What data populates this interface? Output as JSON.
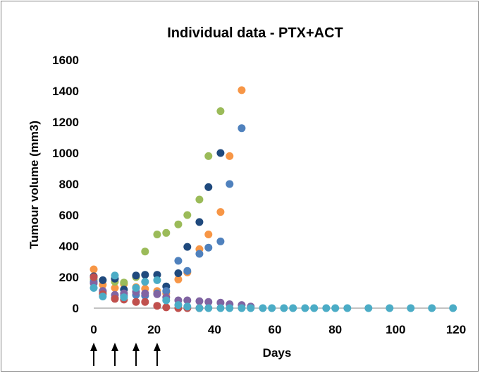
{
  "chart_data": {
    "type": "scatter",
    "title": "Individual data - PTX+ACT",
    "xlabel": "Days",
    "ylabel": "Tumour volume (mm3)",
    "xlim": [
      0,
      120
    ],
    "ylim": [
      0,
      1600
    ],
    "x_ticks": [
      0,
      20,
      40,
      60,
      80,
      100,
      120
    ],
    "y_ticks": [
      0,
      200,
      400,
      600,
      800,
      1000,
      1200,
      1400,
      1600
    ],
    "grid": false,
    "legend": "none",
    "treatment_days": [
      0,
      7,
      14,
      21
    ],
    "series": [
      {
        "color": "#f79646",
        "points": [
          [
            0,
            250
          ],
          [
            3,
            150
          ],
          [
            7,
            130
          ],
          [
            10,
            155
          ],
          [
            14,
            135
          ],
          [
            17,
            125
          ],
          [
            21,
            110
          ],
          [
            24,
            95
          ],
          [
            28,
            185
          ],
          [
            31,
            230
          ],
          [
            35,
            380
          ],
          [
            38,
            475
          ],
          [
            42,
            620
          ],
          [
            45,
            980
          ],
          [
            49,
            1405
          ]
        ]
      },
      {
        "color": "#9bbb59",
        "points": [
          [
            0,
            185
          ],
          [
            3,
            100
          ],
          [
            7,
            170
          ],
          [
            10,
            165
          ],
          [
            14,
            200
          ],
          [
            17,
            365
          ],
          [
            21,
            475
          ],
          [
            24,
            485
          ],
          [
            28,
            540
          ],
          [
            31,
            600
          ],
          [
            35,
            700
          ],
          [
            38,
            980
          ],
          [
            42,
            1270
          ]
        ]
      },
      {
        "color": "#1f497d",
        "points": [
          [
            0,
            205
          ],
          [
            3,
            180
          ],
          [
            7,
            190
          ],
          [
            10,
            120
          ],
          [
            14,
            210
          ],
          [
            17,
            215
          ],
          [
            21,
            215
          ],
          [
            24,
            140
          ],
          [
            28,
            225
          ],
          [
            31,
            395
          ],
          [
            35,
            555
          ],
          [
            38,
            780
          ],
          [
            42,
            1000
          ]
        ]
      },
      {
        "color": "#4f81bd",
        "points": [
          [
            0,
            170
          ],
          [
            3,
            110
          ],
          [
            7,
            65
          ],
          [
            10,
            80
          ],
          [
            14,
            85
          ],
          [
            17,
            80
          ],
          [
            21,
            95
          ],
          [
            24,
            110
          ],
          [
            28,
            305
          ],
          [
            31,
            240
          ],
          [
            35,
            350
          ],
          [
            38,
            390
          ],
          [
            42,
            430
          ],
          [
            45,
            800
          ],
          [
            49,
            1160
          ]
        ]
      },
      {
        "color": "#8064a2",
        "points": [
          [
            0,
            160
          ],
          [
            3,
            110
          ],
          [
            7,
            85
          ],
          [
            10,
            95
          ],
          [
            14,
            105
          ],
          [
            17,
            95
          ],
          [
            21,
            90
          ],
          [
            24,
            70
          ],
          [
            28,
            50
          ],
          [
            31,
            50
          ],
          [
            35,
            45
          ],
          [
            38,
            40
          ],
          [
            42,
            35
          ],
          [
            45,
            25
          ],
          [
            49,
            20
          ],
          [
            52,
            10
          ]
        ]
      },
      {
        "color": "#c0504d",
        "points": [
          [
            0,
            200
          ],
          [
            3,
            90
          ],
          [
            7,
            60
          ],
          [
            10,
            55
          ],
          [
            14,
            40
          ],
          [
            17,
            40
          ],
          [
            21,
            15
          ],
          [
            24,
            5
          ],
          [
            28,
            0
          ],
          [
            31,
            0
          ],
          [
            35,
            0
          ]
        ]
      },
      {
        "color": "#4bacc6",
        "points": [
          [
            0,
            130
          ],
          [
            3,
            75
          ],
          [
            7,
            210
          ],
          [
            10,
            70
          ],
          [
            14,
            130
          ],
          [
            17,
            170
          ],
          [
            21,
            180
          ],
          [
            24,
            50
          ],
          [
            28,
            20
          ],
          [
            31,
            10
          ],
          [
            35,
            0
          ],
          [
            38,
            0
          ],
          [
            42,
            0
          ],
          [
            45,
            0
          ],
          [
            49,
            0
          ],
          [
            52,
            0
          ],
          [
            56,
            0
          ],
          [
            59,
            0
          ],
          [
            63,
            0
          ],
          [
            66,
            0
          ],
          [
            70,
            0
          ],
          [
            73,
            0
          ],
          [
            77,
            0
          ],
          [
            80,
            0
          ],
          [
            84,
            0
          ],
          [
            91,
            0
          ],
          [
            98,
            0
          ],
          [
            105,
            0
          ],
          [
            112,
            0
          ],
          [
            119,
            0
          ]
        ]
      }
    ]
  }
}
